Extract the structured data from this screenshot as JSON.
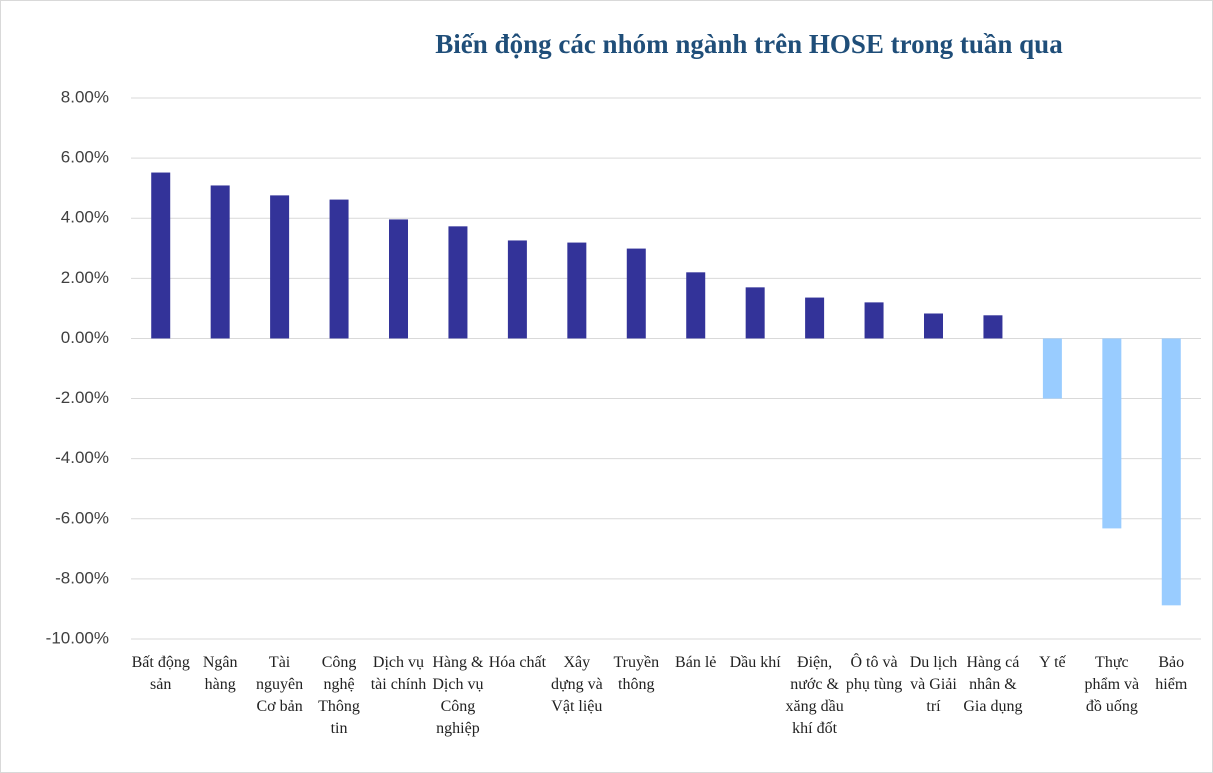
{
  "chart_data": {
    "type": "bar",
    "title": "Biến động các nhóm ngành trên HOSE trong tuần qua",
    "categories": [
      "Bất động sản",
      "Ngân hàng",
      "Tài nguyên Cơ bản",
      "Công nghệ Thông tin",
      "Dịch vụ tài chính",
      "Hàng & Dịch vụ Công nghiệp",
      "Hóa chất",
      "Xây dựng và Vật liệu",
      "Truyền thông",
      "Bán lẻ",
      "Dầu khí",
      "Điện, nước & xăng dầu khí đốt",
      "Ô tô và phụ tùng",
      "Du lịch và Giải trí",
      "Hàng cá nhân & Gia dụng",
      "Y tế",
      "Thực phẩm và đồ uống",
      "Bảo hiểm"
    ],
    "values": [
      5.52,
      5.09,
      4.76,
      4.62,
      3.96,
      3.73,
      3.26,
      3.19,
      2.99,
      2.2,
      1.7,
      1.36,
      1.2,
      0.83,
      0.77,
      -2.0,
      -6.32,
      -8.88
    ],
    "positive_color": "#333399",
    "negative_color": "#99ccff",
    "ylim": [
      -10,
      8
    ],
    "yticks": [
      {
        "value": -10,
        "label": "-10.00%"
      },
      {
        "value": -8,
        "label": "-8.00%"
      },
      {
        "value": -6,
        "label": "-6.00%"
      },
      {
        "value": -4,
        "label": "-4.00%"
      },
      {
        "value": -2,
        "label": "-2.00%"
      },
      {
        "value": 0,
        "label": "0.00%"
      },
      {
        "value": 2,
        "label": "2.00%"
      },
      {
        "value": 4,
        "label": "4.00%"
      },
      {
        "value": 6,
        "label": "6.00%"
      },
      {
        "value": 8,
        "label": "8.00%"
      }
    ],
    "grid": true
  }
}
